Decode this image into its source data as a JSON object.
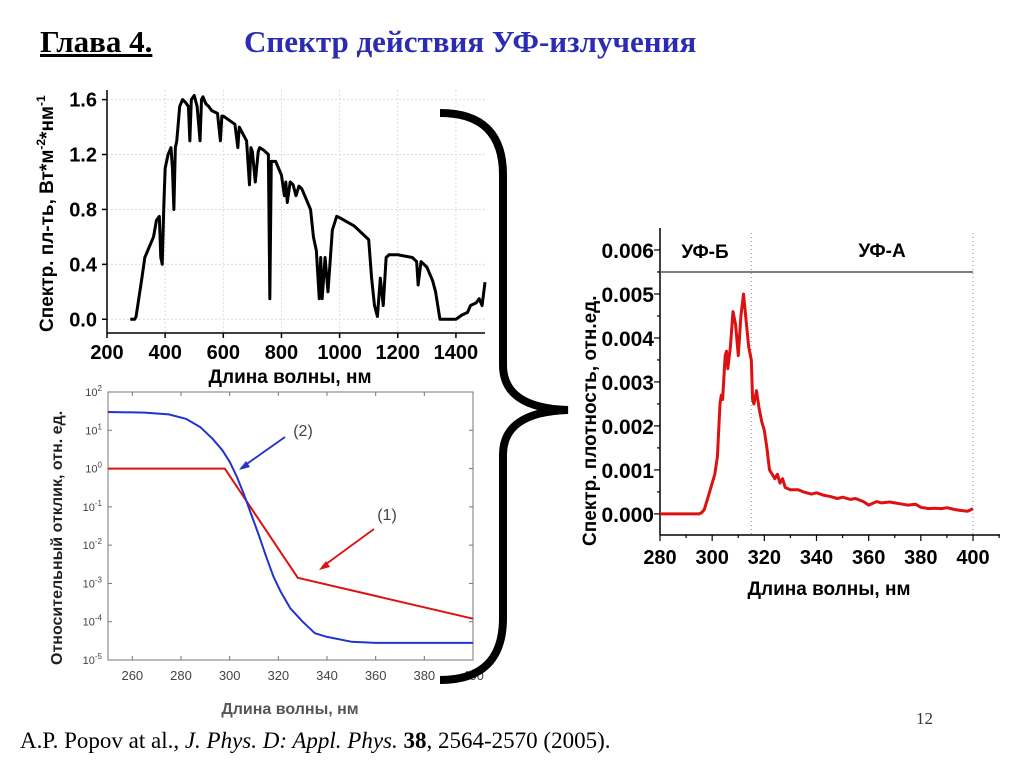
{
  "header": {
    "chapter": "Глава 4.",
    "title": "Спектр действия УФ-излучения"
  },
  "page_number": "12",
  "citation": {
    "authors": "A.P. Popov at al., ",
    "journal": "J. Phys. D: Appl. Phys.",
    "volume": "38",
    "pages_year": ", 2564-2570 (2005)."
  },
  "colors": {
    "title": "#2b2bb5",
    "uvb": "#1a1ac0",
    "uva": "#e020e0",
    "red": "#dd1111",
    "blue": "#2233cc"
  },
  "chart_data": [
    {
      "type": "line",
      "ylabel_main": "Спектр. пл-ть, Вт*м",
      "ylabel_sup1": "-2",
      "ylabel_mid": "*нм",
      "ylabel_sup2": "-1",
      "xlabel": "Длина волны, нм",
      "xlim": [
        200,
        1500
      ],
      "ylim": [
        -0.1,
        1.67
      ],
      "xticks": [
        "200",
        "400",
        "600",
        "800",
        "1000",
        "1200",
        "1400"
      ],
      "yticks": [
        "0.0",
        "0.4",
        "0.8",
        "1.2",
        "1.6"
      ],
      "grid": true,
      "series": [
        {
          "color": "#000000",
          "x": [
            280,
            295,
            300,
            320,
            330,
            340,
            350,
            360,
            370,
            380,
            385,
            390,
            395,
            400,
            410,
            420,
            425,
            430,
            435,
            440,
            450,
            460,
            470,
            480,
            485,
            490,
            500,
            510,
            520,
            525,
            530,
            540,
            550,
            560,
            580,
            590,
            595,
            600,
            620,
            640,
            650,
            655,
            660,
            680,
            690,
            695,
            700,
            710,
            720,
            725,
            740,
            755,
            760,
            765,
            780,
            800,
            810,
            815,
            820,
            830,
            840,
            850,
            860,
            870,
            900,
            910,
            920,
            930,
            935,
            940,
            950,
            960,
            975,
            990,
            1000,
            1050,
            1100,
            1110,
            1120,
            1130,
            1140,
            1150,
            1160,
            1170,
            1200,
            1250,
            1265,
            1270,
            1280,
            1300,
            1320,
            1330,
            1345,
            1400,
            1420,
            1440,
            1450,
            1470,
            1480,
            1490,
            1500
          ],
          "y": [
            0,
            0,
            0.02,
            0.3,
            0.45,
            0.5,
            0.55,
            0.6,
            0.72,
            0.75,
            0.45,
            0.4,
            0.8,
            1.1,
            1.2,
            1.25,
            1.1,
            0.8,
            1.25,
            1.3,
            1.55,
            1.6,
            1.58,
            1.55,
            1.3,
            1.6,
            1.63,
            1.55,
            1.3,
            1.6,
            1.62,
            1.57,
            1.55,
            1.52,
            1.5,
            1.3,
            1.48,
            1.48,
            1.45,
            1.42,
            1.25,
            1.4,
            1.38,
            1.3,
            0.98,
            1.25,
            1.22,
            1.0,
            1.22,
            1.25,
            1.23,
            1.2,
            0.15,
            1.15,
            1.15,
            1.05,
            0.9,
            1.0,
            0.85,
            1.0,
            0.98,
            0.9,
            0.97,
            0.95,
            0.8,
            0.6,
            0.5,
            0.15,
            0.45,
            0.15,
            0.45,
            0.2,
            0.65,
            0.75,
            0.74,
            0.68,
            0.58,
            0.3,
            0.1,
            0.02,
            0.3,
            0.1,
            0.45,
            0.47,
            0.47,
            0.45,
            0.42,
            0.25,
            0.42,
            0.38,
            0.28,
            0.2,
            0,
            0,
            0.03,
            0.05,
            0.1,
            0.12,
            0.15,
            0.1,
            0.27
          ]
        }
      ]
    },
    {
      "type": "line",
      "yscale": "log",
      "ylabel": "Относительный отклик, отн. ед.",
      "xlabel": "Длина волны, нм",
      "xlim": [
        250,
        400
      ],
      "ylim": [
        1e-05,
        100
      ],
      "xticks": [
        "260",
        "280",
        "300",
        "320",
        "340",
        "360",
        "380",
        "400"
      ],
      "yticks_exp": [
        "2",
        "1",
        "0",
        "-1",
        "-2",
        "-3",
        "-4",
        "-5"
      ],
      "ytick_base": "10",
      "annotations": [
        "(2)",
        "(1)"
      ],
      "series": [
        {
          "label": "(1)",
          "color": "#dd1111",
          "x": [
            250,
            298,
            328,
            400
          ],
          "y": [
            1,
            1,
            0.0014,
            0.00012
          ]
        },
        {
          "label": "(2)",
          "color": "#2233cc",
          "x": [
            250,
            265,
            275,
            282,
            288,
            293,
            297,
            300,
            303,
            306,
            309,
            312,
            315,
            318,
            321,
            325,
            330,
            335,
            340,
            350,
            360,
            380,
            400
          ],
          "y": [
            30,
            29,
            26,
            20,
            12,
            6,
            3,
            1.5,
            0.6,
            0.2,
            0.06,
            0.018,
            0.005,
            0.0015,
            0.0006,
            0.00022,
            0.0001,
            5e-05,
            4e-05,
            3e-05,
            2.8e-05,
            2.8e-05,
            2.8e-05
          ]
        }
      ]
    },
    {
      "type": "line",
      "ylabel": "Спектр. плотность, отн.ед.",
      "xlabel": "Длина волны, нм",
      "xlim": [
        280,
        410
      ],
      "ylim": [
        -0.00048,
        0.0065
      ],
      "xticks": [
        "280",
        "300",
        "320",
        "340",
        "360",
        "380",
        "400"
      ],
      "yticks": [
        "0.000",
        "0.001",
        "0.002",
        "0.003",
        "0.004",
        "0.005",
        "0.006"
      ],
      "bands": [
        {
          "label": "УФ-Б",
          "color": "#1a1ac0"
        },
        {
          "label": "УФ-А",
          "color": "#e020e0"
        }
      ],
      "band_boundaries_nm": [
        315,
        400
      ],
      "band_line_level": 0.0055,
      "series": [
        {
          "color": "#dd1111",
          "x": [
            280,
            295,
            296,
            297,
            298,
            299,
            300,
            301,
            302,
            303,
            303.5,
            304,
            305,
            305.5,
            306,
            307,
            308,
            309,
            310,
            311,
            312,
            313,
            314,
            315,
            315.5,
            316,
            317,
            318,
            319,
            320,
            321,
            322,
            323,
            324,
            325,
            326,
            327,
            328,
            330,
            333,
            335,
            338,
            340,
            343,
            345,
            348,
            350,
            353,
            355,
            358,
            360,
            363,
            365,
            368,
            370,
            373,
            375,
            378,
            380,
            383,
            385,
            388,
            390,
            393,
            395,
            398,
            400
          ],
          "y": [
            0,
            0,
            3e-05,
            0.0001,
            0.0003,
            0.0005,
            0.0007,
            0.0009,
            0.0013,
            0.0025,
            0.0027,
            0.0026,
            0.0036,
            0.0037,
            0.0033,
            0.0038,
            0.0046,
            0.0043,
            0.0036,
            0.0045,
            0.005,
            0.0044,
            0.0038,
            0.0035,
            0.0026,
            0.0025,
            0.0028,
            0.0024,
            0.0021,
            0.0019,
            0.0015,
            0.001,
            0.0009,
            0.0008,
            0.0009,
            0.0007,
            0.0008,
            0.0006,
            0.00055,
            0.00055,
            0.0005,
            0.00045,
            0.00048,
            0.00042,
            0.0004,
            0.00035,
            0.00038,
            0.00033,
            0.00035,
            0.00028,
            0.0002,
            0.00028,
            0.00025,
            0.00027,
            0.00025,
            0.00022,
            0.0002,
            0.00022,
            0.00015,
            0.00012,
            0.00013,
            0.00012,
            0.00014,
            0.0001,
            8e-05,
            6e-05,
            0.00012
          ]
        }
      ]
    }
  ]
}
